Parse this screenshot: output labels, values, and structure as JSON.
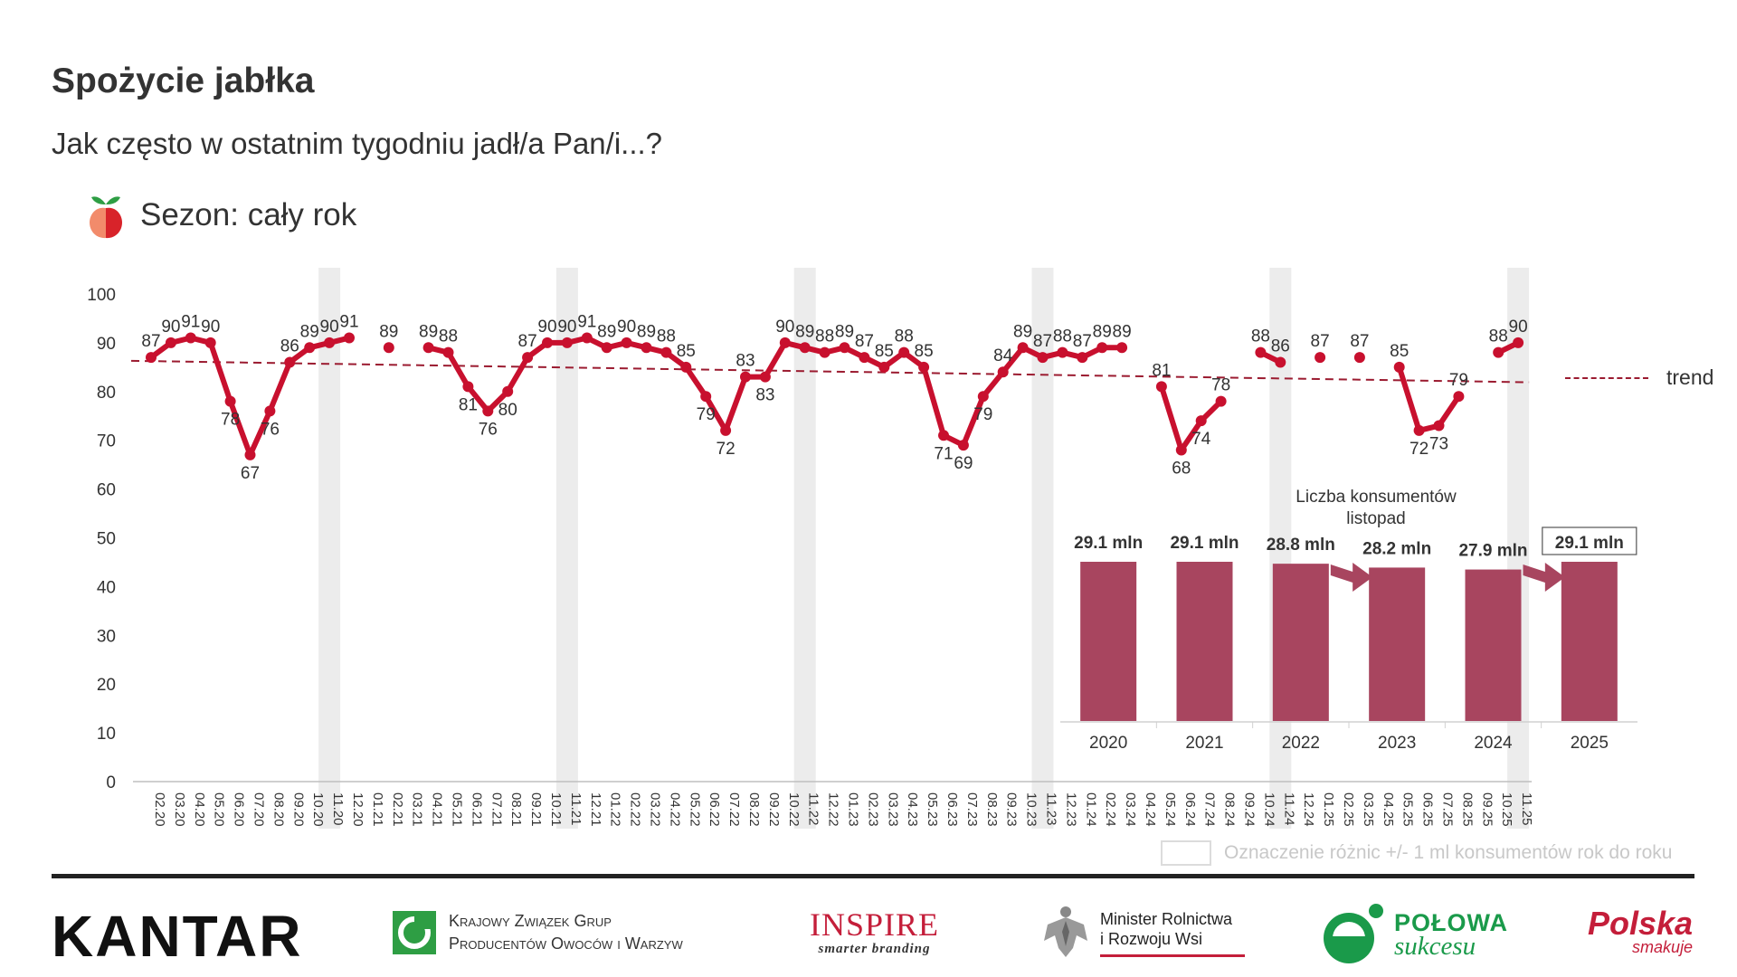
{
  "title": "Spożycie jabłka",
  "subtitle": "Jak często w ostatnim tygodniu jadł/a Pan/i...?",
  "season_label": "Sezon: cały rok",
  "legend": {
    "trend_label": "trend",
    "band_label": "Oznaczenie różnic +/- 1 ml konsumentów rok do roku"
  },
  "logos": {
    "kantar": "KANTAR",
    "kzg_line1": "Krajowy Związek Grup",
    "kzg_line2": "Producentów Owoców i Warzyw",
    "inspire_main": "INSPIRE",
    "inspire_sub": "smarter branding",
    "minister_line1": "Minister Rolnictwa",
    "minister_line2": "i Rozwoju Wsi",
    "polowa_line1": "POŁOWA",
    "polowa_line2": "sukcesu",
    "polska_line1": "Polska",
    "polska_line2": "smakuje"
  },
  "colors": {
    "line": "#c8102e",
    "trend": "#9b1b30",
    "bar": "#a8455f",
    "band": "#ececec",
    "axis": "#bfbfbf"
  },
  "chart_data": [
    {
      "type": "line",
      "title": "Spożycie jabłka",
      "ylim": [
        0,
        100
      ],
      "yticks": [
        0,
        10,
        20,
        30,
        40,
        50,
        60,
        70,
        80,
        90,
        100
      ],
      "categories": [
        "02.20",
        "03.20",
        "04.20",
        "05.20",
        "06.20",
        "07.20",
        "08.20",
        "09.20",
        "10.20",
        "11.20",
        "12.20",
        "01.21",
        "02.21",
        "03.21",
        "04.21",
        "05.21",
        "06.21",
        "07.21",
        "08.21",
        "09.21",
        "10.21",
        "11.21",
        "12.21",
        "01.22",
        "02.22",
        "03.22",
        "04.22",
        "05.22",
        "06.22",
        "07.22",
        "08.22",
        "09.22",
        "10.22",
        "11.22",
        "12.22",
        "01.23",
        "02.23",
        "03.23",
        "04.23",
        "05.23",
        "06.23",
        "07.23",
        "08.23",
        "09.23",
        "10.23",
        "11.23",
        "12.23",
        "01.24",
        "02.24",
        "03.24",
        "04.24",
        "05.24",
        "06.24",
        "07.24",
        "08.24",
        "09.24",
        "10.24",
        "11.24",
        "12.24",
        "01.25",
        "02.25",
        "03.25",
        "04.25",
        "05.25",
        "06.25",
        "07.25",
        "08.25",
        "09.25",
        "10.25",
        "11.25"
      ],
      "values": [
        87,
        90,
        91,
        90,
        78,
        67,
        76,
        86,
        89,
        90,
        91,
        null,
        89,
        null,
        89,
        88,
        81,
        76,
        80,
        87,
        90,
        90,
        91,
        89,
        90,
        89,
        88,
        85,
        79,
        72,
        83,
        83,
        90,
        89,
        88,
        89,
        87,
        85,
        88,
        85,
        71,
        69,
        79,
        84,
        89,
        87,
        88,
        87,
        89,
        89,
        null,
        81,
        68,
        74,
        78,
        null,
        88,
        86,
        null,
        87,
        null,
        87,
        null,
        85,
        72,
        73,
        79,
        null,
        88,
        90
      ],
      "highlight_months": [
        "11.20",
        "11.21",
        "11.22",
        "11.23",
        "11.24",
        "11.25"
      ],
      "trend": {
        "start": 86.3,
        "end": 81.9
      },
      "series_name": "Spożycie jabłka"
    },
    {
      "type": "bar",
      "title": "Liczba konsumentów listopad",
      "categories": [
        "2020",
        "2021",
        "2022",
        "2023",
        "2024",
        "2025"
      ],
      "values": [
        29.1,
        29.1,
        28.8,
        28.2,
        27.9,
        29.1
      ],
      "labels": [
        "29.1 mln",
        "29.1 mln",
        "28.8 mln",
        "28.2 mln",
        "27.9 mln",
        "29.1 mln"
      ],
      "unit": "mln",
      "arrows": [
        [
          "2022",
          "2023"
        ],
        [
          "2024",
          "2025"
        ]
      ],
      "boxed": [
        "2025"
      ]
    }
  ]
}
